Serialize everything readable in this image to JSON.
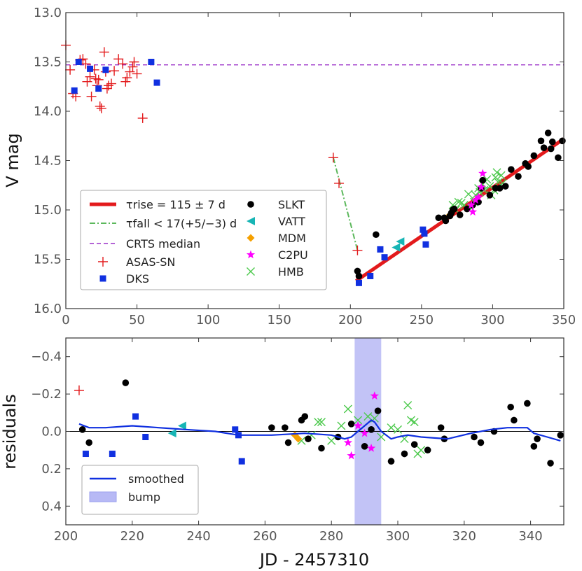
{
  "colors": {
    "fit": "#e31a1c",
    "fall": "#5cb85c",
    "crts": "#9b30c8",
    "asas": "#e31a1c",
    "dks": "#1030e0",
    "slkt": "#000000",
    "vatt": "#17b5b5",
    "mdm": "#f5a000",
    "c2pu": "#ff00ff",
    "hmb": "#4cc94c",
    "smoothed": "#1030e0",
    "bump": "#b7b9f5"
  },
  "chart_data": [
    {
      "type": "scatter",
      "name": "light-curve",
      "xlabel": "",
      "ylabel": "V mag",
      "xlim": [
        0,
        350
      ],
      "ylim": [
        16.0,
        13.0
      ],
      "xticks": [
        0,
        50,
        100,
        150,
        200,
        250,
        300,
        350
      ],
      "yticks": [
        13.0,
        13.5,
        14.0,
        14.5,
        15.0,
        15.5,
        16.0
      ],
      "crts_median": 13.53,
      "fit_rise": {
        "x": [
          204,
          350
        ],
        "y": [
          15.72,
          14.28
        ]
      },
      "fit_fall": {
        "x": [
          188,
          205
        ],
        "y": [
          14.47,
          15.41
        ]
      },
      "legend": {
        "fit": "τrise = 115 ± 7 d",
        "fall": "τfall < 17(+5/−3) d",
        "crts": "CRTS median",
        "asas": "ASAS-SN",
        "dks": "DKS",
        "slkt": "SLKT",
        "vatt": "VATT",
        "mdm": "MDM",
        "c2pu": "C2PU",
        "hmb": "HMB"
      },
      "series": {
        "asas": [
          [
            0,
            13.33
          ],
          [
            3,
            13.58
          ],
          [
            5,
            13.82
          ],
          [
            7,
            13.85
          ],
          [
            10,
            13.48
          ],
          [
            12,
            13.47
          ],
          [
            14,
            13.52
          ],
          [
            15,
            13.7
          ],
          [
            17,
            13.65
          ],
          [
            18,
            13.85
          ],
          [
            20,
            13.58
          ],
          [
            21,
            13.67
          ],
          [
            22,
            13.74
          ],
          [
            23,
            13.68
          ],
          [
            24,
            13.95
          ],
          [
            25,
            13.97
          ],
          [
            27,
            13.4
          ],
          [
            28,
            13.6
          ],
          [
            29,
            13.77
          ],
          [
            30,
            13.74
          ],
          [
            32,
            13.72
          ],
          [
            34,
            13.59
          ],
          [
            37,
            13.47
          ],
          [
            40,
            13.52
          ],
          [
            42,
            13.7
          ],
          [
            43,
            13.66
          ],
          [
            45,
            13.6
          ],
          [
            47,
            13.55
          ],
          [
            48,
            13.5
          ],
          [
            50,
            13.62
          ],
          [
            54,
            14.07
          ],
          [
            188,
            14.47
          ],
          [
            192,
            14.73
          ],
          [
            205,
            15.41
          ]
        ],
        "dks": [
          [
            6,
            13.79
          ],
          [
            9,
            13.5
          ],
          [
            17,
            13.57
          ],
          [
            23,
            13.77
          ],
          [
            28,
            13.58
          ],
          [
            60,
            13.5
          ],
          [
            64,
            13.71
          ],
          [
            206,
            15.74
          ],
          [
            214,
            15.67
          ],
          [
            221,
            15.4
          ],
          [
            224,
            15.48
          ],
          [
            251,
            15.2
          ],
          [
            252,
            15.24
          ],
          [
            253,
            15.35
          ]
        ],
        "slkt": [
          [
            205,
            15.62
          ],
          [
            206,
            15.67
          ],
          [
            218,
            15.25
          ],
          [
            262,
            15.08
          ],
          [
            266,
            15.08
          ],
          [
            267,
            15.11
          ],
          [
            270,
            15.06
          ],
          [
            271,
            15.03
          ],
          [
            272,
            15.0
          ],
          [
            273,
            14.99
          ],
          [
            277,
            15.05
          ],
          [
            282,
            14.99
          ],
          [
            286,
            14.95
          ],
          [
            290,
            14.92
          ],
          [
            292,
            14.78
          ],
          [
            293,
            14.7
          ],
          [
            298,
            14.85
          ],
          [
            302,
            14.78
          ],
          [
            305,
            14.78
          ],
          [
            309,
            14.76
          ],
          [
            313,
            14.59
          ],
          [
            318,
            14.66
          ],
          [
            323,
            14.53
          ],
          [
            325,
            14.56
          ],
          [
            329,
            14.45
          ],
          [
            334,
            14.3
          ],
          [
            336,
            14.37
          ],
          [
            339,
            14.22
          ],
          [
            341,
            14.38
          ],
          [
            342,
            14.31
          ],
          [
            346,
            14.47
          ],
          [
            349,
            14.3
          ]
        ],
        "vatt": [
          [
            232,
            15.38
          ],
          [
            235,
            15.32
          ]
        ],
        "mdm": [
          [
            270,
            15.05
          ]
        ],
        "c2pu": [
          [
            285,
            14.95
          ],
          [
            286,
            15.02
          ],
          [
            288,
            14.9
          ],
          [
            290,
            14.87
          ],
          [
            292,
            14.77
          ],
          [
            293,
            14.63
          ]
        ],
        "hmb": [
          [
            272,
            14.95
          ],
          [
            274,
            15.0
          ],
          [
            276,
            14.92
          ],
          [
            278,
            14.93
          ],
          [
            280,
            14.95
          ],
          [
            283,
            14.84
          ],
          [
            285,
            14.98
          ],
          [
            287,
            14.92
          ],
          [
            288,
            14.85
          ],
          [
            290,
            14.78
          ],
          [
            291,
            14.82
          ],
          [
            293,
            14.74
          ],
          [
            294,
            14.8
          ],
          [
            296,
            14.69
          ],
          [
            298,
            14.76
          ],
          [
            299,
            14.85
          ],
          [
            301,
            14.8
          ],
          [
            302,
            14.67
          ],
          [
            303,
            14.62
          ],
          [
            304,
            14.72
          ],
          [
            306,
            14.65
          ],
          [
            307,
            14.73
          ]
        ]
      }
    },
    {
      "type": "scatter",
      "name": "residuals",
      "xlabel": "JD - 2457310",
      "ylabel": "residuals",
      "xlim": [
        200,
        350
      ],
      "ylim": [
        0.5,
        -0.5
      ],
      "xticks": [
        200,
        220,
        240,
        260,
        280,
        300,
        320,
        340
      ],
      "yticks": [
        -0.4,
        -0.2,
        0.0,
        0.2,
        0.4
      ],
      "bump": [
        287,
        295
      ],
      "legend": {
        "smoothed": "smoothed",
        "bump": "bump"
      },
      "smoothed": [
        [
          204,
          -0.04
        ],
        [
          207,
          -0.02
        ],
        [
          212,
          -0.02
        ],
        [
          220,
          -0.03
        ],
        [
          228,
          -0.02
        ],
        [
          236,
          -0.01
        ],
        [
          245,
          0.0
        ],
        [
          252,
          0.02
        ],
        [
          262,
          0.02
        ],
        [
          272,
          0.01
        ],
        [
          280,
          0.02
        ],
        [
          284,
          0.04
        ],
        [
          286,
          0.03
        ],
        [
          288,
          0.0
        ],
        [
          290,
          -0.03
        ],
        [
          292,
          -0.06
        ],
        [
          293,
          -0.05
        ],
        [
          295,
          0.0
        ],
        [
          298,
          0.04
        ],
        [
          300,
          0.03
        ],
        [
          303,
          0.02
        ],
        [
          307,
          0.03
        ],
        [
          315,
          0.04
        ],
        [
          322,
          0.01
        ],
        [
          328,
          -0.01
        ],
        [
          333,
          -0.02
        ],
        [
          339,
          -0.02
        ],
        [
          341,
          0.01
        ],
        [
          345,
          0.03
        ],
        [
          349,
          0.05
        ]
      ],
      "series": {
        "asas": [
          [
            204,
            -0.22
          ]
        ],
        "slkt": [
          [
            205,
            -0.01
          ],
          [
            207,
            0.06
          ],
          [
            218,
            -0.26
          ],
          [
            262,
            -0.02
          ],
          [
            266,
            -0.02
          ],
          [
            267,
            0.06
          ],
          [
            271,
            -0.06
          ],
          [
            272,
            -0.08
          ],
          [
            273,
            0.04
          ],
          [
            277,
            0.09
          ],
          [
            282,
            0.03
          ],
          [
            286,
            -0.04
          ],
          [
            290,
            0.08
          ],
          [
            292,
            -0.01
          ],
          [
            294,
            -0.11
          ],
          [
            298,
            0.16
          ],
          [
            302,
            0.12
          ],
          [
            305,
            0.07
          ],
          [
            309,
            0.1
          ],
          [
            313,
            -0.02
          ],
          [
            314,
            0.04
          ],
          [
            323,
            0.03
          ],
          [
            325,
            0.06
          ],
          [
            329,
            0.0
          ],
          [
            334,
            -0.13
          ],
          [
            335,
            -0.06
          ],
          [
            339,
            -0.15
          ],
          [
            341,
            0.08
          ],
          [
            342,
            0.04
          ],
          [
            346,
            0.17
          ],
          [
            349,
            0.02
          ]
        ],
        "dks": [
          [
            206,
            0.12
          ],
          [
            214,
            0.12
          ],
          [
            221,
            -0.08
          ],
          [
            224,
            0.03
          ],
          [
            251,
            -0.01
          ],
          [
            252,
            0.02
          ],
          [
            253,
            0.16
          ]
        ],
        "vatt": [
          [
            232,
            0.01
          ],
          [
            235,
            -0.03
          ]
        ],
        "mdm": [
          [
            269,
            0.02
          ],
          [
            270,
            0.04
          ]
        ],
        "c2pu": [
          [
            285,
            0.06
          ],
          [
            286,
            0.13
          ],
          [
            288,
            -0.03
          ],
          [
            290,
            0.01
          ],
          [
            292,
            0.09
          ],
          [
            293,
            -0.19
          ]
        ],
        "hmb": [
          [
            271,
            0.05
          ],
          [
            274,
            0.02
          ],
          [
            276,
            -0.05
          ],
          [
            277,
            -0.05
          ],
          [
            280,
            0.05
          ],
          [
            283,
            -0.03
          ],
          [
            285,
            -0.12
          ],
          [
            288,
            -0.06
          ],
          [
            291,
            -0.08
          ],
          [
            293,
            -0.07
          ],
          [
            295,
            0.03
          ],
          [
            298,
            -0.02
          ],
          [
            300,
            -0.01
          ],
          [
            302,
            0.04
          ],
          [
            303,
            -0.14
          ],
          [
            304,
            -0.06
          ],
          [
            305,
            -0.05
          ],
          [
            306,
            0.12
          ],
          [
            307,
            0.1
          ]
        ]
      }
    }
  ]
}
